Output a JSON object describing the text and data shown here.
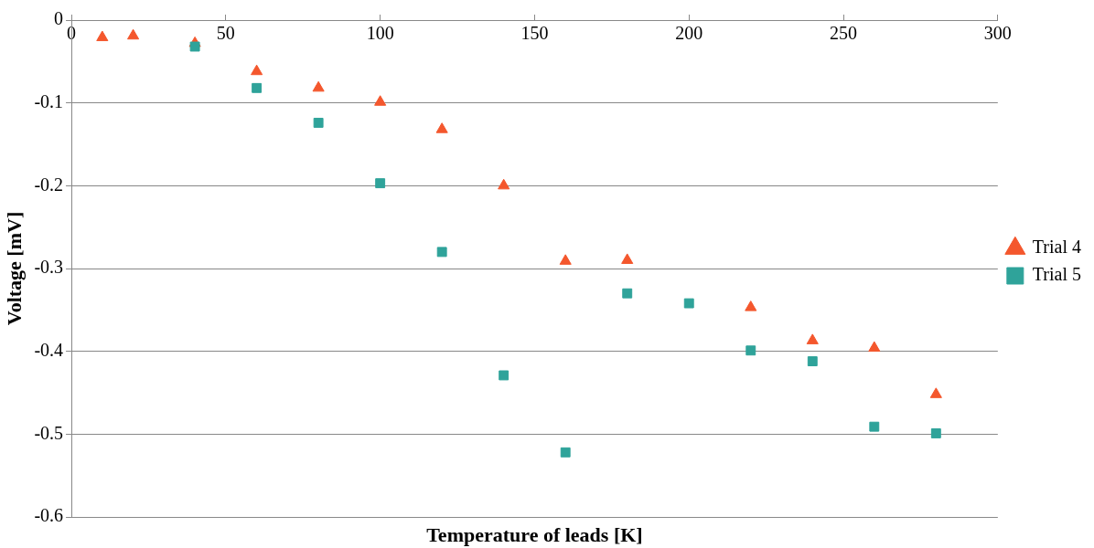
{
  "chart_data": {
    "type": "scatter",
    "xlabel": "Temperature of leads [K]",
    "ylabel": "Voltage [mV]",
    "xlim": [
      0,
      300
    ],
    "xticks": [
      0,
      50,
      100,
      150,
      200,
      250,
      300
    ],
    "ylim": [
      -0.6,
      0
    ],
    "yticks": [
      0,
      -0.1,
      -0.2,
      -0.3,
      -0.4,
      -0.5,
      -0.6
    ],
    "grid": "y",
    "legend": "right",
    "series": [
      {
        "name": "Trial 4",
        "color": "#f4572d",
        "marker": "triangle",
        "x": [
          10,
          20,
          40,
          60,
          80,
          100,
          120,
          140,
          160,
          180,
          220,
          240,
          260,
          280
        ],
        "values": [
          -0.021,
          -0.019,
          -0.028,
          -0.062,
          -0.082,
          -0.099,
          -0.132,
          -0.2,
          -0.291,
          -0.29,
          -0.347,
          -0.387,
          -0.396,
          -0.452
        ]
      },
      {
        "name": "Trial 5",
        "color": "#2fa39a",
        "marker": "square",
        "x": [
          40,
          60,
          80,
          100,
          120,
          140,
          160,
          180,
          200,
          220,
          240,
          260,
          280
        ],
        "values": [
          -0.032,
          -0.082,
          -0.124,
          -0.197,
          -0.28,
          -0.429,
          -0.522,
          -0.33,
          -0.342,
          -0.399,
          -0.412,
          -0.491,
          -0.499
        ]
      }
    ]
  }
}
